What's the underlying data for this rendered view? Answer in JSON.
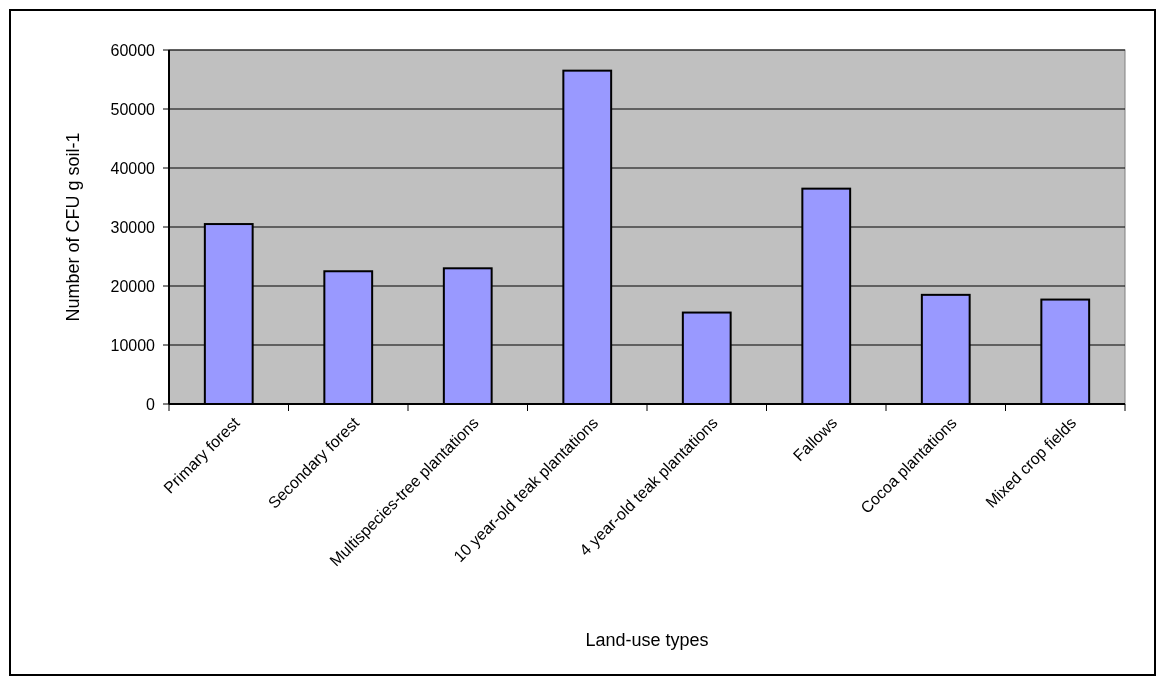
{
  "chart_data": {
    "type": "bar",
    "xlabel": "Land-use types",
    "ylabel": "Number of CFU g soil-1",
    "categories": [
      "Primary forest",
      "Secondary forest",
      "Multispecies-tree plantations",
      "10 year-old teak plantations",
      "4 year-old teak plantations",
      "Fallows",
      "Cocoa plantations",
      "Mixed crop fields"
    ],
    "values": [
      30500,
      22500,
      23000,
      56500,
      15500,
      36500,
      18500,
      17700
    ],
    "color": "#9999ff",
    "ylim": [
      0,
      60000
    ],
    "yticks": [
      0,
      10000,
      20000,
      30000,
      40000,
      50000,
      60000
    ],
    "grid": "y"
  }
}
